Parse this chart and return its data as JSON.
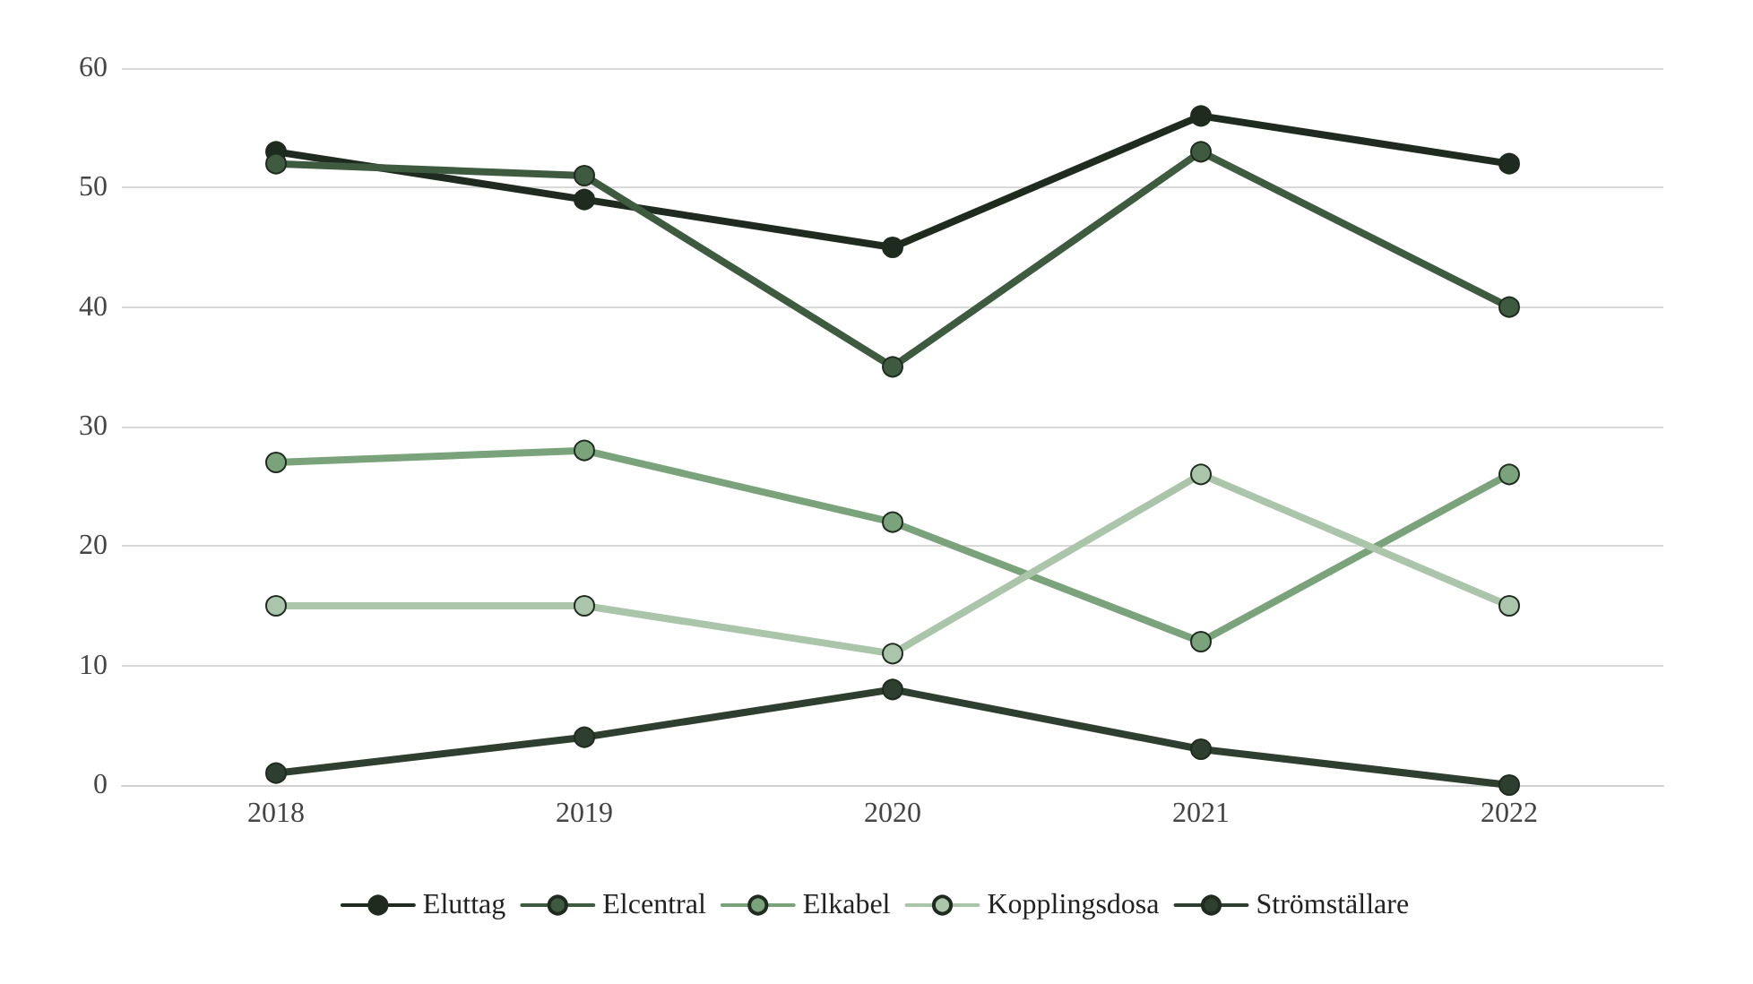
{
  "chart_data": {
    "type": "line",
    "categories": [
      "2018",
      "2019",
      "2020",
      "2021",
      "2022"
    ],
    "series": [
      {
        "name": "Eluttag",
        "color": "#1f2b1f",
        "values": [
          53,
          49,
          45,
          56,
          52
        ]
      },
      {
        "name": "Elcentral",
        "color": "#3e5b40",
        "values": [
          52,
          51,
          35,
          53,
          40
        ]
      },
      {
        "name": "Elkabel",
        "color": "#7ba37b",
        "values": [
          27,
          28,
          22,
          12,
          26
        ]
      },
      {
        "name": "Kopplingsdosa",
        "color": "#aac5aa",
        "values": [
          15,
          15,
          11,
          26,
          15
        ]
      },
      {
        "name": "Strömställare",
        "color": "#2f3f2f",
        "values": [
          1,
          4,
          8,
          3,
          0
        ]
      }
    ],
    "ylim": [
      0,
      60
    ],
    "yticks": [
      0,
      10,
      20,
      30,
      40,
      50,
      60
    ],
    "grid": "y",
    "legend": "bottom",
    "marker": "circle",
    "line_style": "solid"
  }
}
